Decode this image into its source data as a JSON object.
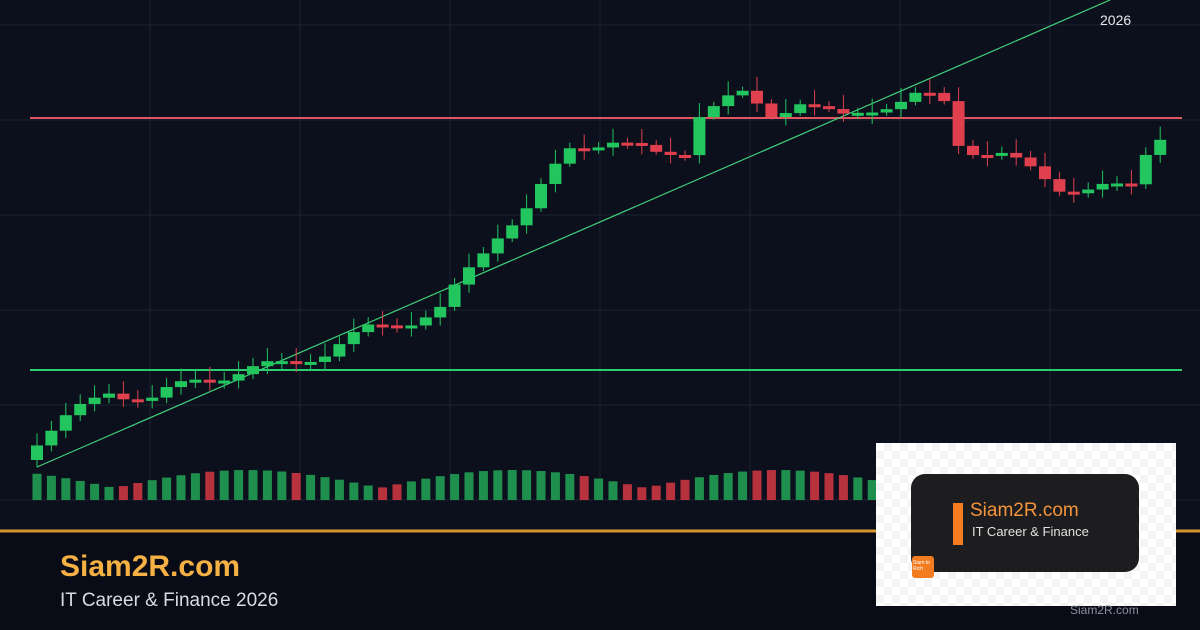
{
  "banner": {
    "title": "Siam2R.com",
    "subtitle": "IT Career & Finance 2026"
  },
  "chart": {
    "year_label": "2026"
  },
  "logo_card": {
    "title": "Siam2R.com",
    "subtitle": "IT Career & Finance",
    "icon_text": "Siam to Rich"
  },
  "watermark": "Siam2R.com"
}
